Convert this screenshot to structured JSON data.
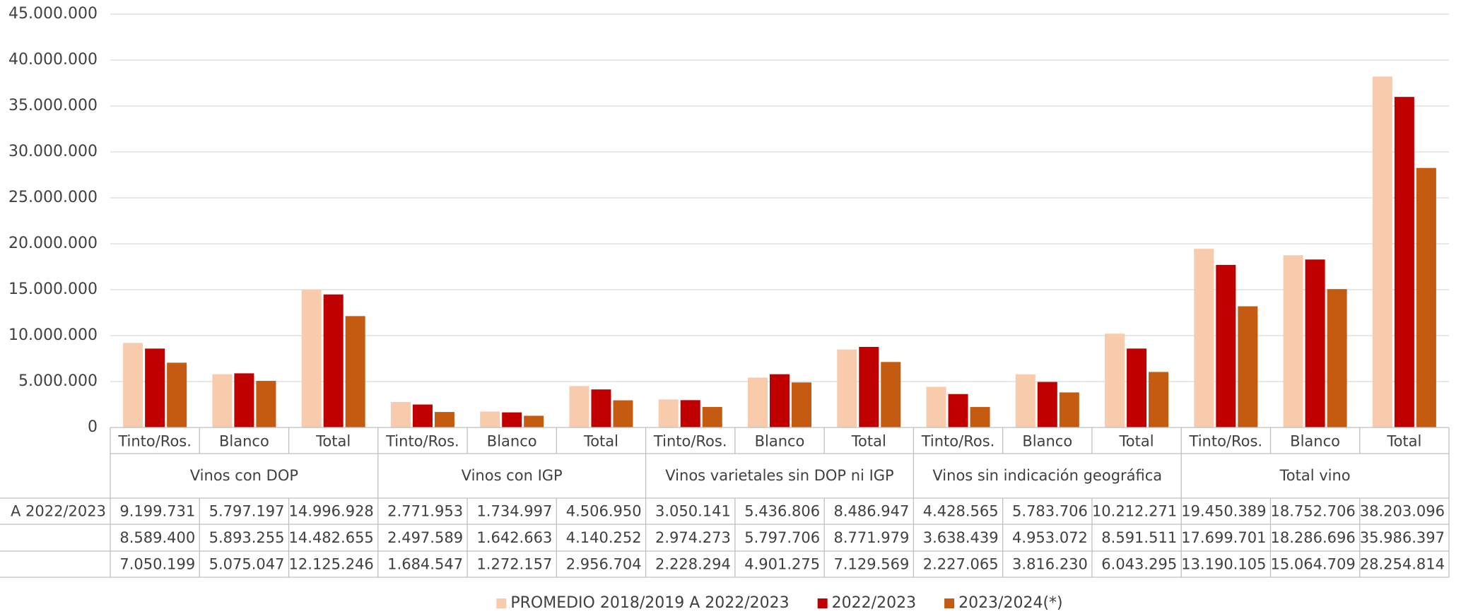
{
  "chart_data": {
    "type": "bar",
    "groups": [
      "Vinos con DOP",
      "Vinos con IGP",
      "Vinos varietales sin DOP ni IGP",
      "Vinos sin indicación geográfica",
      "Total vino"
    ],
    "categories": [
      "Tinto/Ros.",
      "Blanco",
      "Total",
      "Tinto/Ros.",
      "Blanco",
      "Total",
      "Tinto/Ros.",
      "Blanco",
      "Total",
      "Tinto/Ros.",
      "Blanco",
      "Total",
      "Tinto/Ros.",
      "Blanco",
      "Total"
    ],
    "series": [
      {
        "name": "PROMEDIO 2018/2019 A 2022/2023",
        "row_label": "A 2022/2023",
        "color": "#f8cbad",
        "values": [
          9199731,
          5797197,
          14996928,
          2771953,
          1734997,
          4506950,
          3050141,
          5436806,
          8486947,
          4428565,
          5783706,
          10212271,
          19450389,
          18752706,
          38203096
        ],
        "value_labels": [
          "9.199.731",
          "5.797.197",
          "14.996.928",
          "2.771.953",
          "1.734.997",
          "4.506.950",
          "3.050.141",
          "5.436.806",
          "8.486.947",
          "4.428.565",
          "5.783.706",
          "10.212.271",
          "19.450.389",
          "18.752.706",
          "38.203.096"
        ]
      },
      {
        "name": "2022/2023",
        "color": "#c00000",
        "values": [
          8589400,
          5893255,
          14482655,
          2497589,
          1642663,
          4140252,
          2974273,
          5797706,
          8771979,
          3638439,
          4953072,
          8591511,
          17699701,
          18286696,
          35986397
        ],
        "value_labels": [
          "8.589.400",
          "5.893.255",
          "14.482.655",
          "2.497.589",
          "1.642.663",
          "4.140.252",
          "2.974.273",
          "5.797.706",
          "8.771.979",
          "3.638.439",
          "4.953.072",
          "8.591.511",
          "17.699.701",
          "18.286.696",
          "35.986.397"
        ]
      },
      {
        "name": "2023/2024(*)",
        "color": "#c55a11",
        "values": [
          7050199,
          5075047,
          12125246,
          1684547,
          1272157,
          2956704,
          2228294,
          4901275,
          7129569,
          2227065,
          3816230,
          6043295,
          13190105,
          15064709,
          28254814
        ],
        "value_labels": [
          "7.050.199",
          "5.075.047",
          "12.125.246",
          "1.684.547",
          "1.272.157",
          "2.956.704",
          "2.228.294",
          "4.901.275",
          "7.129.569",
          "2.227.065",
          "3.816.230",
          "6.043.295",
          "13.190.105",
          "15.064.709",
          "28.254.814"
        ]
      }
    ],
    "ylim": [
      0,
      45000000
    ],
    "yticks": [
      0,
      {
        "value": 5000000,
        "label": "5.000.000"
      },
      {
        "value": 10000000,
        "label": "10.000.000"
      },
      {
        "value": 15000000,
        "label": "15.000.000"
      },
      {
        "value": 20000000,
        "label": "20.000.000"
      },
      {
        "value": 25000000,
        "label": "25.000.000"
      },
      {
        "value": 30000000,
        "label": "30.000.000"
      },
      {
        "value": 35000000,
        "label": "35.000.000"
      },
      {
        "value": 40000000,
        "label": "40.000.000"
      },
      {
        "value": 45000000,
        "label": "45.000.000"
      }
    ],
    "grid": true,
    "legend": "bottom"
  }
}
